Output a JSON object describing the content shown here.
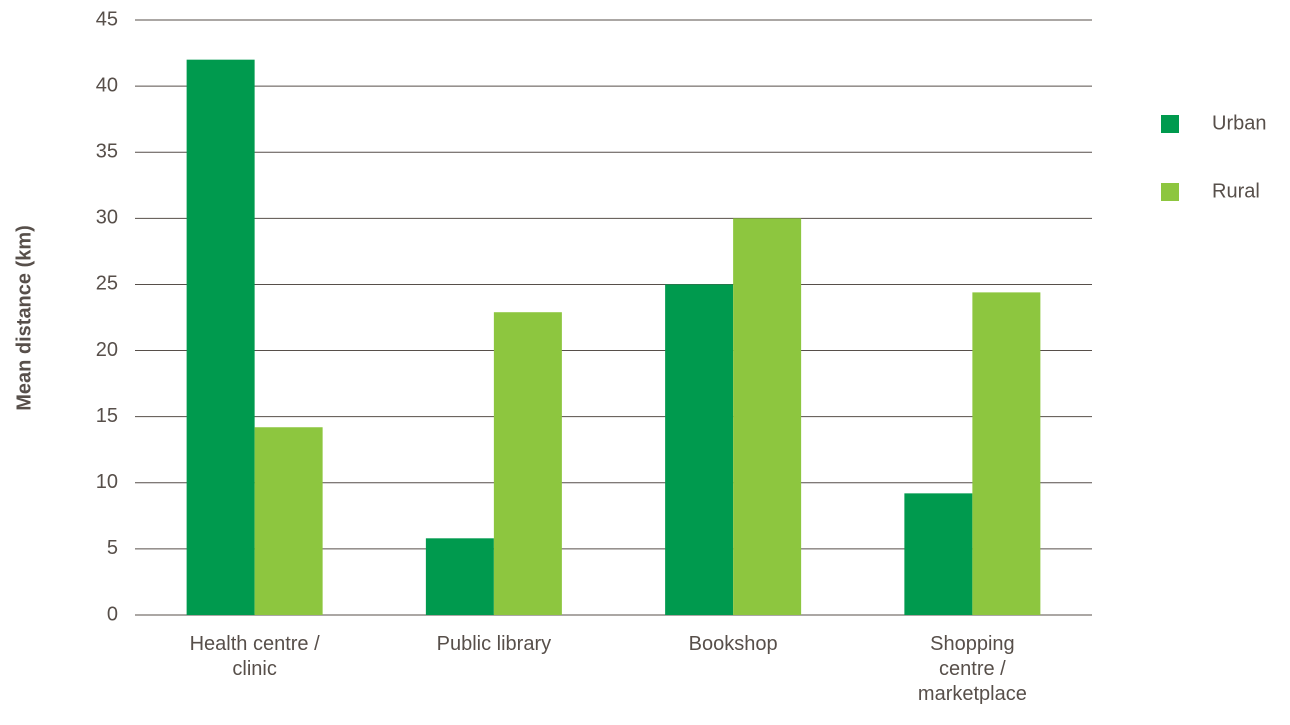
{
  "chart_data": {
    "type": "bar",
    "y_label": "Mean distance (km)",
    "categories": [
      "Health centre / clinic",
      "Public library",
      "Bookshop",
      "Shopping centre / marketplace"
    ],
    "series": [
      {
        "name": "Urban",
        "color": "#009a4e",
        "values": [
          42,
          5.8,
          25,
          9.2
        ]
      },
      {
        "name": "Rural",
        "color": "#8dc63f",
        "values": [
          14.2,
          22.9,
          30,
          24.4
        ]
      }
    ],
    "ylim": [
      0,
      45
    ],
    "yticks": [
      0,
      5,
      10,
      15,
      20,
      25,
      30,
      35,
      40,
      45
    ],
    "grid": true,
    "legend": "right"
  }
}
